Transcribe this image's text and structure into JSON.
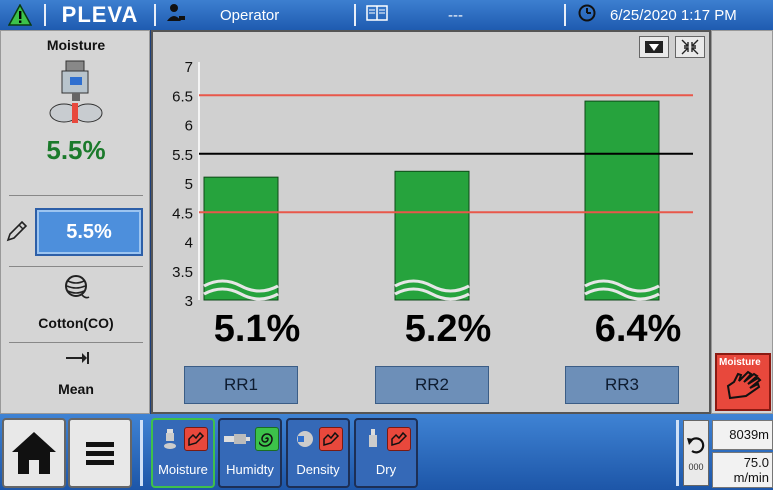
{
  "header": {
    "logo": "PLEVA",
    "user": "Operator",
    "message": "---",
    "datetime": "6/25/2020 1:17 PM"
  },
  "left_panel": {
    "title": "Moisture",
    "value": "5.5%",
    "setpoint": "5.5%",
    "material": "Cotton(CO)",
    "mode": "Mean"
  },
  "chart_data": {
    "type": "bar",
    "categories": [
      "RR1",
      "RR2",
      "RR3"
    ],
    "values": [
      5.1,
      5.2,
      6.4
    ],
    "value_labels": [
      "5.1%",
      "5.2%",
      "6.4%"
    ],
    "yticks": [
      "3",
      "3.5",
      "4",
      "4.5",
      "5",
      "5.5",
      "6",
      "6.5",
      "7"
    ],
    "ylim": [
      3,
      7
    ],
    "target_line": 5.5,
    "limit_lines": [
      4.5,
      6.5
    ],
    "bar_color": "#26a33d",
    "limit_color": "#e8574a",
    "target_color": "#000000"
  },
  "right_panel": {
    "moisture_button": "Moisture"
  },
  "bottom_bar": {
    "modes": [
      {
        "label": "Moisture"
      },
      {
        "label": "Humidty"
      },
      {
        "label": "Density"
      },
      {
        "label": "Dry"
      }
    ],
    "undo_label": "000",
    "length": "8039m",
    "speed_value": "75.0",
    "speed_unit": "m/min"
  },
  "colors": {
    "accent": "#2a67bf",
    "value_green": "#1b7a2b",
    "alarm_red": "#e8483c"
  }
}
